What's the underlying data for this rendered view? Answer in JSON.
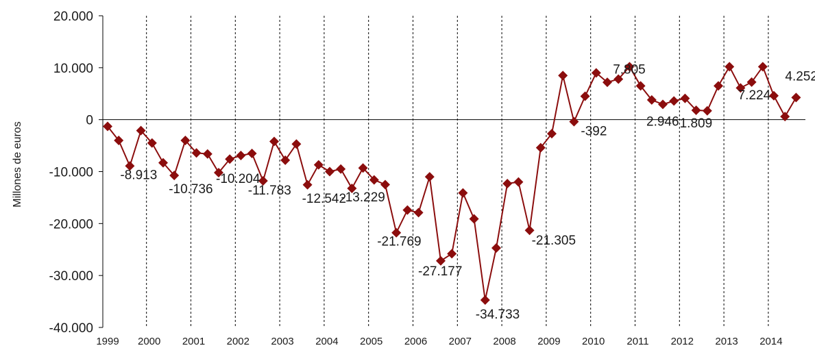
{
  "chart_data": {
    "type": "line",
    "title": "",
    "xlabel": "",
    "ylabel": "Millones de euros",
    "ylim": [
      -40000,
      20000
    ],
    "y_tick_labels": [
      "20.000",
      "10.000",
      "0",
      "-10.000",
      "-20.000",
      "-30.000",
      "-40.000"
    ],
    "x_tick_labels": [
      "1999",
      "2000",
      "2001",
      "2002",
      "2003",
      "2004",
      "2005",
      "2006",
      "2007",
      "2008",
      "2009",
      "2010",
      "2011",
      "2012",
      "2013",
      "2014"
    ],
    "grid": "vertical dashed lines between years",
    "series_color": "#8B0D0D",
    "series": [
      {
        "values": [
          -1300,
          -4000,
          -8913,
          -2100,
          -4500,
          -8300,
          -10736,
          -4000,
          -6400,
          -6600,
          -10204,
          -7600,
          -6900,
          -6500,
          -11783,
          -4200,
          -7800,
          -4700,
          -12542,
          -8700,
          -10000,
          -9500,
          -13229,
          -9300,
          -11600,
          -12500,
          -21769,
          -17400,
          -17900,
          -11000,
          -27177,
          -25800,
          -14100,
          -19100,
          -34733,
          -24700,
          -12300,
          -12000,
          -21305,
          -5400,
          -2700,
          8500,
          -392,
          4500,
          9000,
          7200,
          7805,
          10200,
          6500,
          3800,
          2946,
          3600,
          4100,
          1809,
          1700,
          6500,
          10200,
          6100,
          7224,
          10200,
          4600,
          600,
          4252
        ]
      }
    ],
    "data_labels": [
      {
        "index": 2,
        "text": "-8.913"
      },
      {
        "index": 6,
        "text": "-10.736"
      },
      {
        "index": 10,
        "text": "-10.204"
      },
      {
        "index": 14,
        "text": "-11.783"
      },
      {
        "index": 18,
        "text": "-12.542"
      },
      {
        "index": 22,
        "text": "-13.229"
      },
      {
        "index": 26,
        "text": "-21.769"
      },
      {
        "index": 30,
        "text": "-27.177"
      },
      {
        "index": 34,
        "text": "-34.733"
      },
      {
        "index": 38,
        "text": "-21.305"
      },
      {
        "index": 42,
        "text": "-392"
      },
      {
        "index": 46,
        "text": "7.805"
      },
      {
        "index": 50,
        "text": "2.946"
      },
      {
        "index": 53,
        "text": "1.809"
      },
      {
        "index": 58,
        "text": "7.224"
      },
      {
        "index": 62,
        "text": "4.252"
      }
    ]
  }
}
